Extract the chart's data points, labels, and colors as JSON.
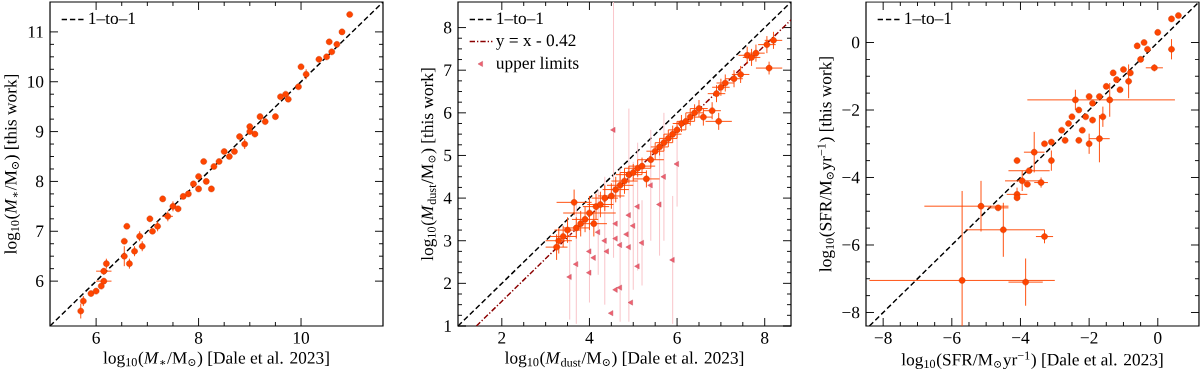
{
  "chart_data": [
    {
      "type": "scatter",
      "xlabel": "log$_{10}$(*M*$_{∗}$/M$_{⊙}$) [Dale et al. 2023]",
      "ylabel": "log$_{10}$(*M*$_{∗}$/M$_{⊙}$) [this work]",
      "xlim": [
        5.1,
        11.6
      ],
      "ylim": [
        5.1,
        11.6
      ],
      "xticks": [
        6,
        8,
        10
      ],
      "yticks": [
        6,
        7,
        8,
        9,
        10,
        11
      ],
      "legend": "top left",
      "series": [
        {
          "name": "1–to–1",
          "type": "line",
          "line_style": "dashed",
          "color": "#000000",
          "x": [
            5.1,
            11.6
          ],
          "values": [
            5.1,
            11.6
          ]
        },
        {
          "type": "scatter",
          "marker": "circle",
          "color": "#ff4500",
          "x": [
            5.7,
            5.75,
            5.9,
            6.0,
            6.1,
            6.15,
            6.2,
            6.15,
            6.55,
            6.55,
            6.6,
            6.65,
            6.75,
            6.85,
            6.9,
            7.05,
            7.1,
            7.2,
            7.3,
            7.4,
            7.5,
            7.6,
            7.8,
            7.9,
            8.0,
            8.1,
            8.15,
            8.25,
            8.3,
            8.4,
            8.5,
            8.7,
            8.8,
            8.9,
            9.0,
            9.1,
            9.2,
            9.3,
            9.5,
            9.6,
            9.7,
            9.75,
            9.95,
            10.0,
            10.1,
            10.35,
            10.5,
            10.55,
            10.7,
            10.8,
            10.95,
            10.6,
            8.6,
            7.7,
            8.0,
            9.0
          ],
          "values": [
            5.4,
            5.6,
            5.75,
            5.8,
            5.9,
            6.0,
            6.35,
            6.2,
            6.5,
            6.8,
            7.1,
            6.35,
            6.6,
            6.9,
            6.7,
            7.25,
            7.0,
            7.1,
            7.65,
            7.3,
            7.5,
            7.45,
            7.75,
            7.95,
            8.1,
            8.4,
            8.0,
            7.85,
            8.3,
            8.4,
            8.6,
            8.6,
            8.9,
            8.75,
            9.1,
            8.95,
            9.3,
            9.2,
            9.3,
            9.7,
            9.75,
            9.65,
            9.9,
            10.3,
            10.15,
            10.45,
            10.5,
            10.8,
            10.75,
            11.0,
            11.35,
            10.6,
            8.5,
            7.7,
            7.85,
            9.0
          ],
          "errors": [
            0.15,
            0.1,
            null,
            null,
            null,
            null,
            0.1,
            null,
            0.2,
            null,
            null,
            0.1,
            0.1,
            0.1,
            0.1,
            null,
            null,
            0.1,
            null,
            0.1,
            0.1,
            null,
            null,
            null,
            null,
            null,
            null,
            null,
            null,
            null,
            null,
            null,
            null,
            0.1,
            null,
            null,
            null,
            null,
            null,
            null,
            null,
            null,
            null,
            null,
            0.1,
            null,
            null,
            null,
            null,
            null,
            null,
            null,
            null,
            null,
            null,
            null
          ],
          "xerrors": [
            null,
            null,
            null,
            null,
            null,
            0.15,
            null,
            0.15,
            null,
            null,
            null,
            null,
            null,
            null,
            null,
            null,
            null,
            null,
            null,
            0.1,
            null,
            null,
            null,
            null,
            null,
            null,
            null,
            null,
            null,
            null,
            null,
            null,
            null,
            null,
            null,
            null,
            null,
            null,
            null,
            null,
            null,
            null,
            null,
            null,
            null,
            null,
            null,
            null,
            null,
            null,
            null,
            null,
            null,
            null,
            null,
            null
          ]
        }
      ]
    },
    {
      "type": "scatter",
      "xlabel": "log$_{10}$(*M*$_{dust}$/M$_{⊙}$) [Dale et al. 2023]",
      "ylabel": "log$_{10}$(*M*$_{dust}$/M$_{⊙}$) [this work]",
      "xlim": [
        1.0,
        8.6
      ],
      "ylim": [
        1.0,
        8.6
      ],
      "xticks": [
        2,
        4,
        6,
        8
      ],
      "yticks": [
        1,
        2,
        3,
        4,
        5,
        6,
        7,
        8
      ],
      "legend": "top left",
      "series": [
        {
          "name": "1–to–1",
          "type": "line",
          "line_style": "dashed",
          "color": "#000000",
          "x": [
            1.0,
            8.6
          ],
          "values": [
            1.0,
            8.6
          ]
        },
        {
          "name": "y = x - 0.42",
          "type": "line",
          "line_style": "dashdot",
          "color": "#8b0000",
          "x": [
            1.42,
            8.6
          ],
          "values": [
            1.0,
            8.18
          ]
        },
        {
          "name": "upper limits",
          "type": "scatter",
          "marker": "triangle",
          "color": "#f06070",
          "x": [
            4.55,
            6.0,
            5.6,
            5.7,
            5.4,
            5.1,
            4.9,
            4.6,
            4.2,
            4.35,
            4.7,
            4.0,
            4.1,
            3.7,
            3.55,
            4.0,
            4.6,
            4.95,
            5.1,
            4.5,
            5.9,
            5.2,
            4.9,
            4.4,
            4.7,
            4.6,
            5.0,
            4.85
          ],
          "values": [
            5.6,
            4.8,
            3.85,
            4.5,
            4.3,
            3.8,
            3.6,
            3.4,
            3.2,
            3.0,
            2.9,
            2.75,
            2.6,
            2.45,
            2.15,
            2.25,
            1.85,
            1.55,
            2.4,
            1.3,
            2.55,
            2.95,
            2.85,
            2.75,
            1.9,
            3.05,
            3.35,
            3.15
          ],
          "errors": [
            3.0,
            1.0,
            1.2,
            1.5,
            1.3,
            1.5,
            2.5,
            null,
            1.0,
            1.5,
            1.8,
            1.2,
            null,
            1.4,
            1.0,
            null,
            null,
            null,
            null,
            null,
            1.5,
            1.0,
            null,
            null,
            null,
            null,
            1.5,
            null
          ]
        },
        {
          "type": "scatter",
          "marker": "circle",
          "color": "#ff4500",
          "x": [
            3.25,
            3.3,
            3.4,
            3.5,
            3.65,
            3.7,
            3.8,
            3.9,
            4.0,
            4.1,
            4.15,
            4.25,
            4.35,
            4.5,
            4.6,
            4.7,
            4.8,
            4.9,
            5.0,
            5.1,
            5.2,
            5.3,
            5.4,
            5.5,
            5.6,
            5.7,
            5.8,
            5.9,
            6.0,
            6.1,
            6.2,
            6.3,
            6.4,
            6.5,
            6.6,
            6.8,
            6.95,
            6.9,
            7.0,
            7.1,
            7.3,
            7.45,
            7.6,
            7.7,
            7.8,
            8.05,
            8.1,
            8.2
          ],
          "values": [
            2.85,
            3.0,
            3.1,
            3.25,
            3.9,
            3.3,
            3.4,
            3.5,
            3.65,
            3.4,
            3.8,
            3.85,
            4.0,
            4.05,
            4.2,
            4.3,
            4.4,
            4.55,
            4.6,
            4.7,
            4.75,
            4.45,
            4.9,
            5.1,
            5.2,
            5.3,
            5.4,
            5.5,
            5.6,
            5.75,
            5.8,
            5.9,
            6.0,
            6.1,
            5.9,
            6.05,
            5.8,
            6.45,
            6.6,
            6.7,
            6.8,
            6.9,
            7.35,
            7.3,
            7.4,
            7.6,
            7.05,
            7.7
          ],
          "errors": [
            0.3,
            0.3,
            0.25,
            0.3,
            0.3,
            0.25,
            0.3,
            0.3,
            0.4,
            0.3,
            0.3,
            0.3,
            0.3,
            0.3,
            0.3,
            0.3,
            0.3,
            0.2,
            0.2,
            0.2,
            0.2,
            0.2,
            0.2,
            0.2,
            0.2,
            0.2,
            0.2,
            0.2,
            0.2,
            0.2,
            0.2,
            0.2,
            0.2,
            0.2,
            0.2,
            0.2,
            0.2,
            0.2,
            0.2,
            0.2,
            0.2,
            0.2,
            0.2,
            0.2,
            0.2,
            0.2,
            0.15,
            0.2
          ],
          "xerrors": [
            0.25,
            0.3,
            0.3,
            0.3,
            0.4,
            0.3,
            null,
            0.3,
            0.6,
            0.3,
            0.3,
            0.3,
            0.3,
            0.3,
            0.3,
            0.3,
            0.3,
            0.3,
            0.3,
            0.3,
            0.3,
            0.3,
            0.3,
            0.2,
            0.2,
            0.2,
            0.2,
            0.2,
            0.2,
            0.2,
            0.2,
            null,
            0.2,
            0.2,
            0.2,
            0.2,
            0.3,
            0.2,
            0.2,
            0.2,
            0.2,
            0.2,
            0.2,
            0.2,
            0.2,
            0.2,
            0.3,
            0.2
          ]
        }
      ]
    },
    {
      "type": "scatter",
      "xlabel": "log$_{10}$(SFR/M$_{⊙}$yr$^{−1}$) [Dale et al. 2023]",
      "ylabel": "log$_{10}$(SFR/M$_{⊙}$yr$^{−1}$) [this work]",
      "xlim": [
        -8.5,
        1.2
      ],
      "ylim": [
        -8.4,
        1.2
      ],
      "xticks": [
        {
          "value": -8,
          "label": "−8"
        },
        {
          "value": -6,
          "label": "−6"
        },
        {
          "value": -4,
          "label": "−4"
        },
        {
          "value": -2,
          "label": "−2"
        },
        0
      ],
      "yticks": [
        {
          "value": -8,
          "label": "−8"
        },
        {
          "value": -6,
          "label": "−6"
        },
        {
          "value": -4,
          "label": "−4"
        },
        {
          "value": -2,
          "label": "−2"
        },
        0
      ],
      "legend": "top left",
      "series": [
        {
          "name": "1–to–1",
          "type": "line",
          "line_style": "dashed",
          "color": "#000000",
          "x": [
            -8.4,
            1.2
          ],
          "values": [
            -8.4,
            1.2
          ]
        },
        {
          "type": "scatter",
          "marker": "circle",
          "color": "#ff4500",
          "x": [
            -5.7,
            -3.85,
            -5.15,
            -4.5,
            -3.3,
            -4.65,
            -4.1,
            -4.1,
            -3.95,
            -3.8,
            -3.6,
            -3.4,
            -3.1,
            -3.3,
            -3.1,
            -2.8,
            -2.5,
            -2.4,
            -2.0,
            -1.7,
            -1.4,
            -0.85,
            -0.1,
            0.4,
            0.6,
            0.4,
            0.0,
            -0.3,
            -0.5,
            -0.8,
            -1.0,
            -1.2,
            -1.5,
            -1.7,
            -1.9,
            -2.1,
            -2.3,
            -2.6,
            -2.2,
            -1.6,
            -1.9,
            -0.6,
            -0.4,
            -1.3,
            -2.0,
            -1.1,
            -2.7,
            -2.3,
            -4.1,
            -3.75
          ],
          "values": [
            -7.05,
            -7.1,
            -4.85,
            -5.55,
            -5.75,
            -4.9,
            -4.5,
            -3.5,
            -4.1,
            -4.2,
            -3.25,
            -4.15,
            -3.5,
            -3.0,
            -2.95,
            -2.6,
            -2.2,
            -1.7,
            -3.0,
            -2.85,
            -1.7,
            -1.15,
            -0.75,
            -0.2,
            0.8,
            0.7,
            0.3,
            -0.2,
            -0.5,
            -0.9,
            -0.8,
            -1.1,
            -1.3,
            -1.6,
            -1.8,
            -2.2,
            -2.0,
            -2.4,
            -2.6,
            -2.2,
            -2.3,
            -0.1,
            0.0,
            -0.9,
            -1.6,
            -1.4,
            -2.9,
            -2.9,
            -4.6,
            -3.8
          ],
          "errors": [
            [
              -8.4,
              -4.4
            ],
            0.7,
            0.75,
            0.8,
            0.2,
            null,
            0.2,
            null,
            0.3,
            null,
            0.6,
            0.15,
            0.3,
            null,
            null,
            null,
            null,
            0.3,
            0.3,
            0.7,
            0.5,
            0.5,
            0.1,
            0.3,
            null,
            null,
            null,
            null,
            null,
            null,
            null,
            null,
            null,
            null,
            null,
            null,
            null,
            null,
            null,
            0.3,
            null,
            null,
            null,
            null,
            null,
            null,
            null,
            null,
            null,
            null
          ],
          "xerrors": [
            [
              -8.4,
              -3.0
            ],
            0.5,
            [
              -6.8,
              -4.35
            ],
            [
              -5.6,
              -3.3
            ],
            0.25,
            0.3,
            0.3,
            null,
            0.5,
            null,
            0.3,
            0.2,
            null,
            null,
            null,
            null,
            null,
            null,
            null,
            0.3,
            [
              -3.8,
              0.5
            ],
            null,
            0.25,
            null,
            null,
            null,
            null,
            null,
            null,
            null,
            null,
            null,
            null,
            null,
            null,
            null,
            null,
            null,
            null,
            null,
            null,
            null,
            null,
            null,
            null,
            null,
            null,
            null,
            null,
            0.6
          ]
        }
      ]
    }
  ]
}
